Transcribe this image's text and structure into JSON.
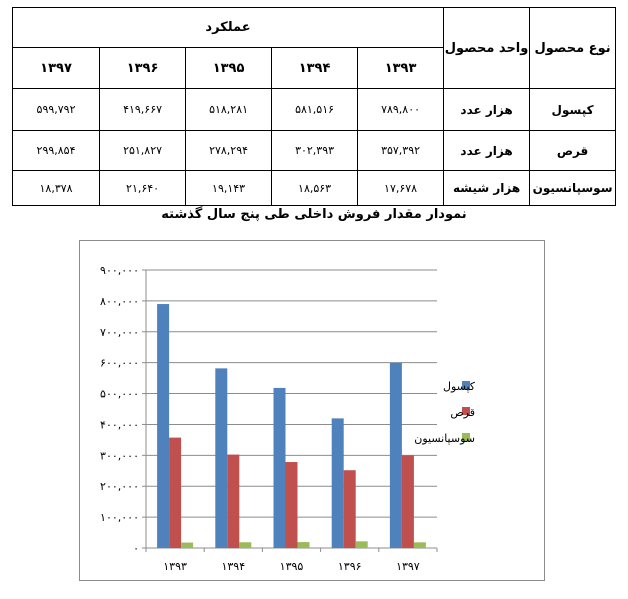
{
  "table": {
    "headers": {
      "product_type": "نوع محصول",
      "unit": "واحد محصول",
      "performance": "عملکرد",
      "years": [
        "۱۳۹۳",
        "۱۳۹۴",
        "۱۳۹۵",
        "۱۳۹۶",
        "۱۳۹۷"
      ]
    },
    "rows": [
      {
        "product": "کپسول",
        "unit": "هزار عدد",
        "values": [
          "۷۸۹,۸۰۰",
          "۵۸۱,۵۱۶",
          "۵۱۸,۲۸۱",
          "۴۱۹,۶۶۷",
          "۵۹۹,۷۹۲"
        ]
      },
      {
        "product": "قرص",
        "unit": "هزار عدد",
        "values": [
          "۳۵۷,۳۹۲",
          "۳۰۲,۳۹۳",
          "۲۷۸,۲۹۴",
          "۲۵۱,۸۲۷",
          "۲۹۹,۸۵۴"
        ]
      },
      {
        "product": "سوسپانسیون",
        "unit": "هزار شیشه",
        "values": [
          "۱۷,۶۷۸",
          "۱۸,۵۶۳",
          "۱۹,۱۴۳",
          "۲۱,۶۴۰",
          "۱۸,۳۷۸"
        ]
      }
    ]
  },
  "chart_title": "نمودار مقدار فروش داخلی طی پنج سال گذشته",
  "chart_data": {
    "type": "bar",
    "title": "نمودار مقدار فروش داخلی طی پنج سال گذشته",
    "categories": [
      "۱۳۹۳",
      "۱۳۹۴",
      "۱۳۹۵",
      "۱۳۹۶",
      "۱۳۹۷"
    ],
    "series": [
      {
        "name": "کپسول",
        "color": "#4f81bd",
        "values": [
          789800,
          581516,
          518281,
          419667,
          599792
        ]
      },
      {
        "name": "قرص",
        "color": "#c0504d",
        "values": [
          357392,
          302393,
          278294,
          251827,
          299854
        ]
      },
      {
        "name": "سوسپانسیون",
        "color": "#9bbb59",
        "values": [
          17678,
          18563,
          19143,
          21640,
          18378
        ]
      }
    ],
    "ylim": [
      0,
      900000
    ],
    "yticks": [
      0,
      100000,
      200000,
      300000,
      400000,
      500000,
      600000,
      700000,
      800000,
      900000
    ],
    "ytick_labels": [
      "۰",
      "۱۰۰,۰۰۰",
      "۲۰۰,۰۰۰",
      "۳۰۰,۰۰۰",
      "۴۰۰,۰۰۰",
      "۵۰۰,۰۰۰",
      "۶۰۰,۰۰۰",
      "۷۰۰,۰۰۰",
      "۸۰۰,۰۰۰",
      "۹۰۰,۰۰۰"
    ],
    "grid": true,
    "legend_position": "right",
    "xlabel": "",
    "ylabel": ""
  }
}
